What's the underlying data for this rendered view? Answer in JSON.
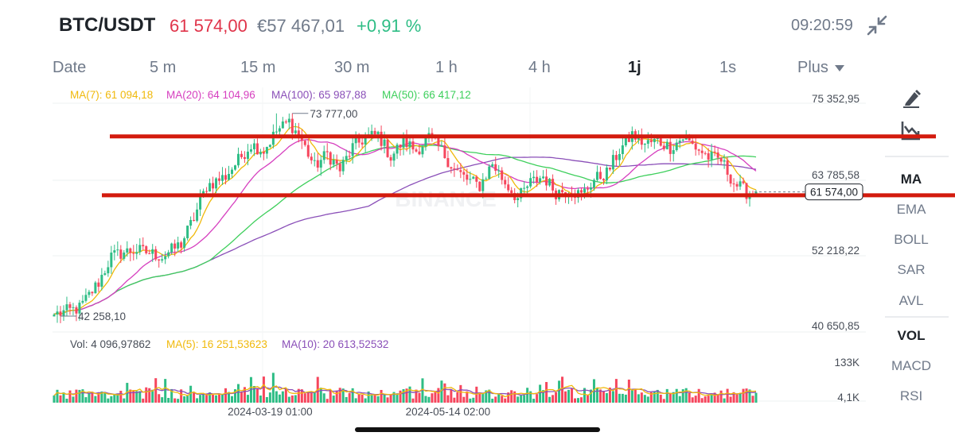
{
  "header": {
    "pair": "BTC/USDT",
    "price": "61 574,00",
    "price_eur": "€57 467,01",
    "change": "+0,91 %",
    "time": "09:20:59"
  },
  "tabs": [
    {
      "label": "Date"
    },
    {
      "label": "5 m"
    },
    {
      "label": "15 m"
    },
    {
      "label": "30 m"
    },
    {
      "label": "1 h"
    },
    {
      "label": "4 h"
    },
    {
      "label": "1j",
      "active": true
    },
    {
      "label": "1s"
    },
    {
      "label": "Plus"
    }
  ],
  "indicators": {
    "ma7": "MA(7): 61 094,18",
    "ma20": "MA(20): 64 104,96",
    "ma100": "MA(100): 65 987,88",
    "ma50": "MA(50): 66 417,12",
    "vol": "Vol: 4 096,97862",
    "vma5": "MA(5): 16 251,53623",
    "vma10": "MA(10): 20 613,52532"
  },
  "sidebar": {
    "main": [
      "MA",
      "EMA",
      "BOLL",
      "SAR",
      "AVL"
    ],
    "sub": [
      "VOL",
      "MACD",
      "RSI"
    ]
  },
  "watermark": "BINANCE",
  "colors": {
    "up": "#2ebd85",
    "down": "#f6465d",
    "ma7": "#f0b90b",
    "ma20": "#d63fbf",
    "ma100": "#8a4fb8",
    "ma50": "#3ecf5c",
    "resistance": "#d31b0e",
    "vma5": "#f0b90b",
    "vma10": "#8a4fb8"
  },
  "chart_data": {
    "type": "candlestick",
    "y_ticks": [
      "75 352,95",
      "63 785,58",
      "52 218,22",
      "40 650,85"
    ],
    "y_tick_values": [
      75352.95,
      63785.58,
      52218.22,
      40650.85
    ],
    "ylim": [
      40650.85,
      75352.95
    ],
    "high_label": "73 777,00",
    "high_value": 73777,
    "low_label": "42 258,10",
    "low_value": 42258.1,
    "last_price_label": "61 574,00",
    "last_price": 61574,
    "vol_ticks": [
      "133K",
      "4,1K"
    ],
    "vol_tick_values": [
      133000,
      4100
    ],
    "vol_max": 160000,
    "x_ticks": [
      {
        "label": "2024-03-19 01:00",
        "index": 68
      },
      {
        "label": "2024-05-14 02:00",
        "index": 124
      }
    ],
    "resistance_level": 70200,
    "support_level": 61050,
    "candle_count": 222,
    "anchors": [
      [
        0,
        42500
      ],
      [
        8,
        43500
      ],
      [
        14,
        47500
      ],
      [
        18,
        51500
      ],
      [
        22,
        52200
      ],
      [
        26,
        52500
      ],
      [
        30,
        52100
      ],
      [
        34,
        51500
      ],
      [
        40,
        53500
      ],
      [
        44,
        57500
      ],
      [
        48,
        62500
      ],
      [
        54,
        64000
      ],
      [
        58,
        66500
      ],
      [
        62,
        69000
      ],
      [
        66,
        68000
      ],
      [
        70,
        71000
      ],
      [
        74,
        72500
      ],
      [
        78,
        69500
      ],
      [
        82,
        65500
      ],
      [
        86,
        67500
      ],
      [
        90,
        65000
      ],
      [
        94,
        68500
      ],
      [
        98,
        70000
      ],
      [
        102,
        70500
      ],
      [
        106,
        67000
      ],
      [
        110,
        69500
      ],
      [
        114,
        68000
      ],
      [
        118,
        70000
      ],
      [
        122,
        68000
      ],
      [
        126,
        65000
      ],
      [
        130,
        63500
      ],
      [
        134,
        62500
      ],
      [
        138,
        66000
      ],
      [
        142,
        63000
      ],
      [
        146,
        60500
      ],
      [
        150,
        63000
      ],
      [
        154,
        64000
      ],
      [
        158,
        61500
      ],
      [
        162,
        62000
      ],
      [
        166,
        61000
      ],
      [
        170,
        63500
      ],
      [
        174,
        64500
      ],
      [
        178,
        68000
      ],
      [
        182,
        70500
      ],
      [
        186,
        69000
      ],
      [
        190,
        69500
      ],
      [
        194,
        68500
      ],
      [
        198,
        70000
      ],
      [
        202,
        68500
      ],
      [
        206,
        67000
      ],
      [
        210,
        66500
      ],
      [
        214,
        63000
      ],
      [
        218,
        61500
      ],
      [
        221,
        61574
      ]
    ]
  }
}
